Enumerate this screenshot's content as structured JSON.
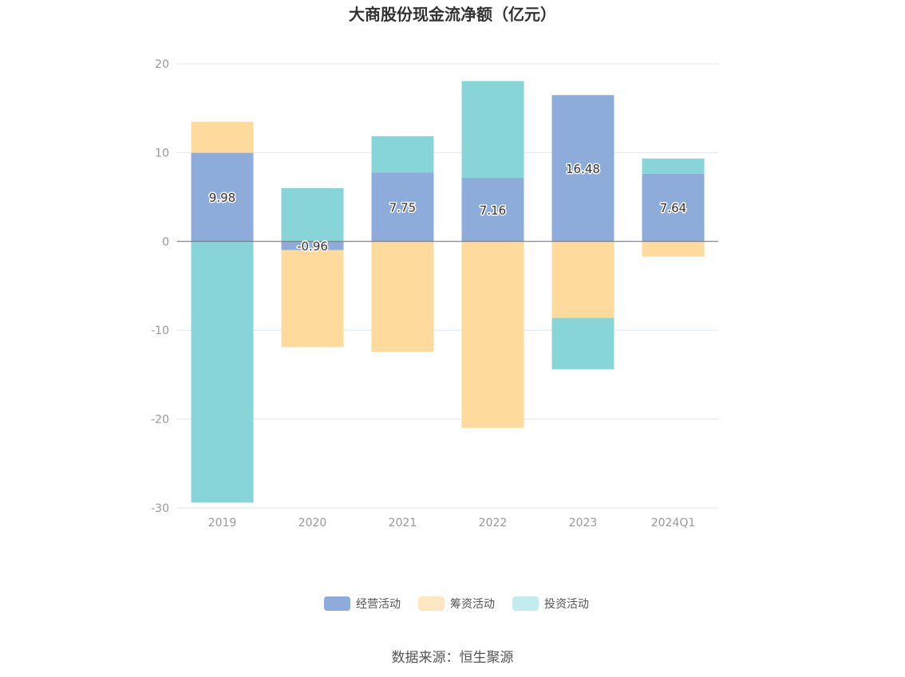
{
  "chart_data": {
    "type": "bar",
    "stacked": true,
    "title": "大商股份现金流净额（亿元）",
    "categories": [
      "2019",
      "2020",
      "2021",
      "2022",
      "2023",
      "2024Q1"
    ],
    "series": [
      {
        "name": "经营活动",
        "color": "#8eacda",
        "values": [
          9.98,
          -0.96,
          7.75,
          7.16,
          16.48,
          7.64
        ]
      },
      {
        "name": "筹资活动",
        "color": "#ffda9d",
        "values": [
          3.5,
          -10.9,
          -12.4,
          -21.0,
          -8.6,
          -1.7
        ]
      },
      {
        "name": "投资活动",
        "color": "#88d5d9",
        "legend_color": "#c3ecee",
        "values": [
          -29.4,
          6.0,
          4.1,
          10.9,
          -5.8,
          1.7
        ]
      }
    ],
    "data_labels": [
      "9.98",
      "-0.96",
      "7.75",
      "7.16",
      "16.48",
      "7.64"
    ],
    "ylim": [
      -30,
      20
    ],
    "yticks": [
      20,
      10,
      0,
      -10,
      -20,
      -30
    ],
    "grid": true,
    "legend_position": "bottom-center",
    "legend_swatch_colors": [
      "#8eacda",
      "#ffe7c2",
      "#c3ecee"
    ]
  },
  "source": "数据来源：恒生聚源"
}
